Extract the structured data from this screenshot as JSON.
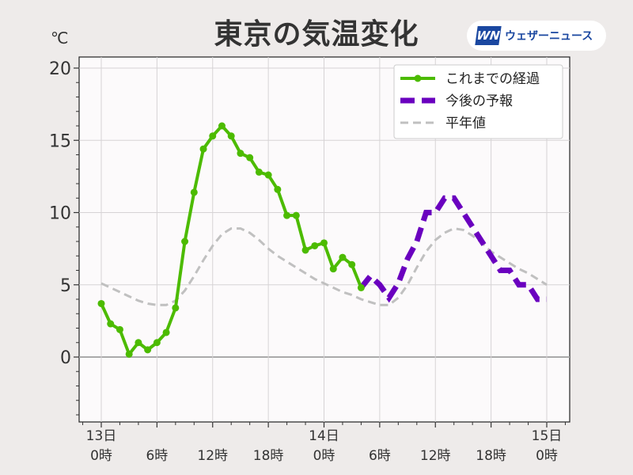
{
  "title": "東京の気温変化",
  "unit": "℃",
  "logo": {
    "mark": "WN",
    "text": "ウェザーニュース"
  },
  "chart_data": {
    "type": "line",
    "title": "東京の気温変化",
    "ylabel": "℃",
    "ylim": [
      -4.5,
      20.8
    ],
    "xlim_hours": [
      -2.4,
      50.5
    ],
    "grid": true,
    "legend_position": "top-right",
    "yticks": [
      0,
      5,
      10,
      15,
      20
    ],
    "xticks": [
      {
        "hour": 0,
        "label1": "13日",
        "label2": "0時"
      },
      {
        "hour": 6,
        "label1": "",
        "label2": "6時"
      },
      {
        "hour": 12,
        "label1": "",
        "label2": "12時"
      },
      {
        "hour": 18,
        "label1": "",
        "label2": "18時"
      },
      {
        "hour": 24,
        "label1": "14日",
        "label2": "0時"
      },
      {
        "hour": 30,
        "label1": "",
        "label2": "6時"
      },
      {
        "hour": 36,
        "label1": "",
        "label2": "12時"
      },
      {
        "hour": 42,
        "label1": "",
        "label2": "18時"
      },
      {
        "hour": 48,
        "label1": "15日",
        "label2": "0時"
      }
    ],
    "series": [
      {
        "name": "これまでの経過",
        "color": "#4cbb00",
        "style": "solid-marker",
        "start_hour": 0,
        "values": [
          3.7,
          2.3,
          1.9,
          0.2,
          1.0,
          0.5,
          1.0,
          1.7,
          3.4,
          8.0,
          11.4,
          14.4,
          15.3,
          16.0,
          15.3,
          14.1,
          13.8,
          12.8,
          12.6,
          11.6,
          9.8,
          9.8,
          7.4,
          7.7,
          7.9,
          6.1,
          6.9,
          6.4,
          4.8
        ]
      },
      {
        "name": "今後の予報",
        "color": "#6a00bf",
        "style": "thick-dash",
        "start_hour": 28,
        "values": [
          4.8,
          5.6,
          5.0,
          4.1,
          5.1,
          6.8,
          8.0,
          10.0,
          10.0,
          11.0,
          11.0,
          10.0,
          9.0,
          8.0,
          7.0,
          6.0,
          6.0,
          5.0,
          5.0,
          4.0,
          4.0
        ]
      },
      {
        "name": "平年値",
        "color": "#c0c0c0",
        "style": "dash",
        "start_hour": 0,
        "values": [
          5.1,
          4.8,
          4.5,
          4.2,
          3.9,
          3.7,
          3.6,
          3.6,
          3.9,
          4.6,
          5.6,
          6.7,
          7.7,
          8.5,
          8.9,
          8.9,
          8.6,
          8.1,
          7.5,
          7.0,
          6.6,
          6.2,
          5.8,
          5.4,
          5.1,
          4.8,
          4.5,
          4.3,
          4.0,
          3.8,
          3.6,
          3.6,
          4.1,
          5.0,
          6.2,
          7.3,
          8.1,
          8.6,
          8.9,
          8.8,
          8.4,
          7.9,
          7.3,
          6.9,
          6.5,
          6.1,
          5.8,
          5.4,
          5.0
        ]
      }
    ]
  }
}
